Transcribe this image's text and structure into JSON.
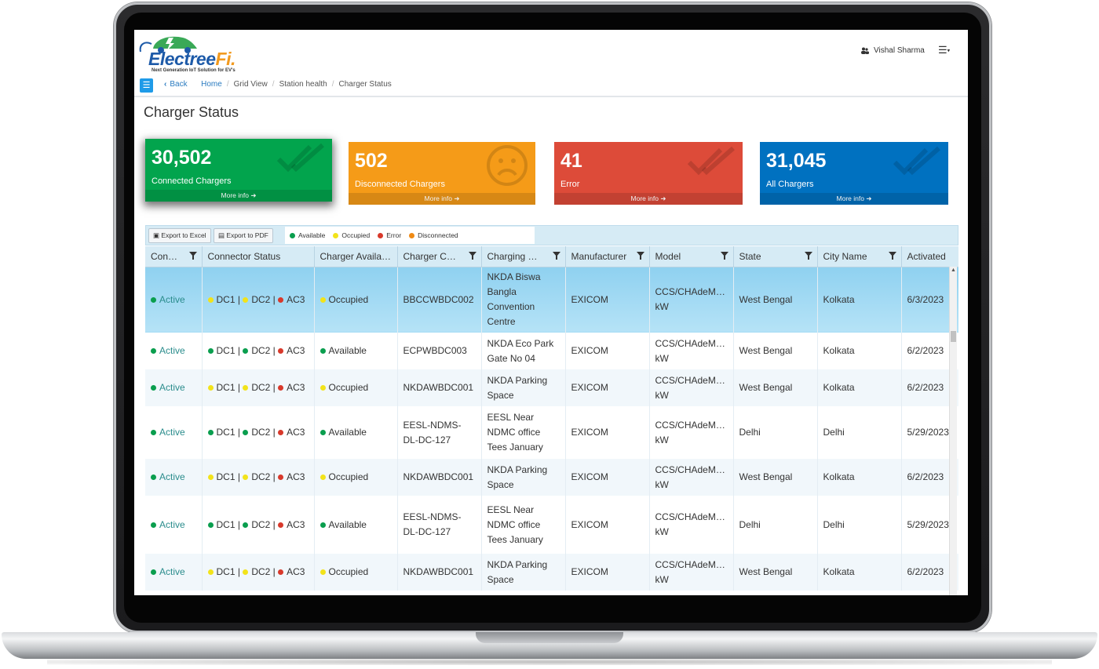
{
  "header": {
    "logo_main": "Electree",
    "logo_accent": "Fi.",
    "logo_tagline": "Next Generation IoT Solution for EV's",
    "user_name": "Vishal Sharma",
    "menu_icon": "bars-icon"
  },
  "breadcrumb": {
    "back": "Back",
    "items": [
      "Home",
      "Grid View",
      "Station health",
      "Charger Status"
    ]
  },
  "page_title": "Charger Status",
  "cards": [
    {
      "value": "30,502",
      "label": "Connected Chargers",
      "more": "More info",
      "icon": "double-check-icon",
      "color": "#02a44d"
    },
    {
      "value": "502",
      "label": "Disconnected Chargers",
      "more": "More info",
      "icon": "sad-face-icon",
      "color": "#f59b18"
    },
    {
      "value": "41",
      "label": "Error",
      "more": "More info",
      "icon": "double-check-icon",
      "color": "#dd4b39"
    },
    {
      "value": "31,045",
      "label": "All Chargers",
      "more": "More info",
      "icon": "double-check-icon",
      "color": "#0071c0"
    }
  ],
  "toolbar": {
    "export_excel": "Export to Excel",
    "export_pdf": "Export to PDF",
    "legend": [
      {
        "label": "Available",
        "color": "#0a9e4e"
      },
      {
        "label": "Occupied",
        "color": "#f2e31a"
      },
      {
        "label": "Error",
        "color": "#d8392b"
      },
      {
        "label": "Disconnected",
        "color": "#ef8a14"
      }
    ]
  },
  "table": {
    "columns": [
      "Con…",
      "Connector Status",
      "Charger Availa…",
      "Charger C…",
      "Charging …",
      "Manufacturer",
      "Model",
      "State",
      "City Name",
      "Activated"
    ],
    "rows": [
      {
        "conn": "Active",
        "dc1": "yellow",
        "dc2": "yellow",
        "ac3": "red",
        "avail": "Occupied",
        "avail_color": "yellow",
        "code": "BBCCWBDC002",
        "station": "NKDA Biswa Bangla Convention Centre",
        "mfr": "EXICOM",
        "model": "CCS/CHAdeM… kW",
        "state": "West Bengal",
        "city": "Kolkata",
        "activated": "6/3/2023"
      },
      {
        "conn": "Active",
        "dc1": "green",
        "dc2": "green",
        "ac3": "red",
        "avail": "Available",
        "avail_color": "green",
        "code": "ECPWBDC003",
        "station": "NKDA Eco Park Gate No 04",
        "mfr": "EXICOM",
        "model": "CCS/CHAdeM… kW",
        "state": "West Bengal",
        "city": "Kolkata",
        "activated": "6/2/2023"
      },
      {
        "conn": "Active",
        "dc1": "yellow",
        "dc2": "yellow",
        "ac3": "red",
        "avail": "Occupied",
        "avail_color": "yellow",
        "code": "NKDAWBDC001",
        "station": "NKDA Parking Space",
        "mfr": "EXICOM",
        "model": "CCS/CHAdeM… kW",
        "state": "West Bengal",
        "city": "Kolkata",
        "activated": "6/2/2023"
      },
      {
        "conn": "Active",
        "dc1": "green",
        "dc2": "green",
        "ac3": "red",
        "avail": "Available",
        "avail_color": "green",
        "code": "EESL-NDMS-DL-DC-127",
        "station": "EESL Near NDMC office Tees January",
        "mfr": "EXICOM",
        "model": "CCS/CHAdeM… kW",
        "state": "Delhi",
        "city": "Delhi",
        "activated": "5/29/2023"
      },
      {
        "conn": "Active",
        "dc1": "yellow",
        "dc2": "yellow",
        "ac3": "red",
        "avail": "Occupied",
        "avail_color": "yellow",
        "code": "NKDAWBDC001",
        "station": "NKDA Parking Space",
        "mfr": "EXICOM",
        "model": "CCS/CHAdeM… kW",
        "state": "West Bengal",
        "city": "Kolkata",
        "activated": "6/2/2023"
      },
      {
        "conn": "Active",
        "dc1": "green",
        "dc2": "green",
        "ac3": "red",
        "avail": "Available",
        "avail_color": "green",
        "code": "EESL-NDMS-DL-DC-127",
        "station": "EESL Near NDMC office Tees January",
        "mfr": "EXICOM",
        "model": "CCS/CHAdeM… kW",
        "state": "Delhi",
        "city": "Delhi",
        "activated": "5/29/2023"
      },
      {
        "conn": "Active",
        "dc1": "yellow",
        "dc2": "yellow",
        "ac3": "red",
        "avail": "Occupied",
        "avail_color": "yellow",
        "code": "NKDAWBDC001",
        "station": "NKDA Parking Space",
        "mfr": "EXICOM",
        "model": "CCS/CHAdeM… kW",
        "state": "West Bengal",
        "city": "Kolkata",
        "activated": "6/2/2023"
      }
    ],
    "connector_labels": [
      "DC1",
      "DC2",
      "AC3"
    ]
  },
  "status_colors": {
    "green": "#0a9e4e",
    "yellow": "#f2e31a",
    "red": "#d8392b",
    "orange": "#ef8a14"
  }
}
